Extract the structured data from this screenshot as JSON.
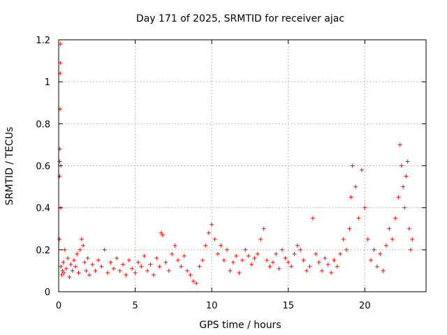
{
  "chart_data": {
    "type": "scatter",
    "title": "Day 171 of 2025, SRMTID for receiver ajac",
    "xlabel": "GPS time / hours",
    "ylabel": "SRMTID / TECUs",
    "xlim": [
      0,
      24
    ],
    "ylim": [
      0,
      1.2
    ],
    "xticks": [
      0,
      5,
      10,
      15,
      20
    ],
    "xtick_labels": [
      "0",
      "5",
      "10",
      "15",
      "20"
    ],
    "yticks": [
      0,
      0.2,
      0.4,
      0.6,
      0.8,
      1.0,
      1.2
    ],
    "ytick_labels": [
      "0",
      "0.2",
      "0.4",
      "0.6",
      "0.8",
      "1",
      "1.2"
    ],
    "grid": true,
    "marker": "+",
    "color": "#ff0000",
    "series": [
      {
        "name": "SRMTID",
        "points": [
          [
            0.05,
            0.25
          ],
          [
            0.06,
            0.55
          ],
          [
            0.07,
            0.62
          ],
          [
            0.08,
            0.68
          ],
          [
            0.09,
            0.87
          ],
          [
            0.1,
            1.04
          ],
          [
            0.11,
            1.09
          ],
          [
            0.12,
            1.18
          ],
          [
            0.13,
            0.4
          ],
          [
            0.14,
            0.6
          ],
          [
            0.15,
            0.12
          ],
          [
            0.2,
            0.08
          ],
          [
            0.25,
            0.1
          ],
          [
            0.3,
            0.14
          ],
          [
            0.35,
            0.09
          ],
          [
            0.4,
            0.2
          ],
          [
            0.5,
            0.11
          ],
          [
            0.6,
            0.16
          ],
          [
            0.7,
            0.07
          ],
          [
            0.8,
            0.13
          ],
          [
            0.9,
            0.1
          ],
          [
            1.0,
            0.15
          ],
          [
            1.1,
            0.12
          ],
          [
            1.2,
            0.18
          ],
          [
            1.3,
            0.09
          ],
          [
            1.4,
            0.2
          ],
          [
            1.5,
            0.25
          ],
          [
            1.6,
            0.22
          ],
          [
            1.7,
            0.14
          ],
          [
            1.8,
            0.1
          ],
          [
            1.9,
            0.16
          ],
          [
            2.0,
            0.08
          ],
          [
            2.2,
            0.13
          ],
          [
            2.4,
            0.1
          ],
          [
            2.6,
            0.15
          ],
          [
            2.8,
            0.12
          ],
          [
            3.0,
            0.2
          ],
          [
            3.2,
            0.09
          ],
          [
            3.4,
            0.14
          ],
          [
            3.6,
            0.11
          ],
          [
            3.8,
            0.16
          ],
          [
            4.0,
            0.1
          ],
          [
            4.2,
            0.13
          ],
          [
            4.4,
            0.08
          ],
          [
            4.6,
            0.15
          ],
          [
            4.8,
            0.11
          ],
          [
            5.0,
            0.09
          ],
          [
            5.2,
            0.14
          ],
          [
            5.4,
            0.12
          ],
          [
            5.6,
            0.17
          ],
          [
            5.8,
            0.1
          ],
          [
            6.0,
            0.13
          ],
          [
            6.2,
            0.08
          ],
          [
            6.4,
            0.16
          ],
          [
            6.6,
            0.12
          ],
          [
            6.7,
            0.28
          ],
          [
            6.8,
            0.27
          ],
          [
            7.0,
            0.14
          ],
          [
            7.2,
            0.1
          ],
          [
            7.4,
            0.18
          ],
          [
            7.6,
            0.22
          ],
          [
            7.8,
            0.15
          ],
          [
            8.0,
            0.12
          ],
          [
            8.2,
            0.17
          ],
          [
            8.4,
            0.1
          ],
          [
            8.6,
            0.08
          ],
          [
            8.8,
            0.05
          ],
          [
            9.0,
            0.04
          ],
          [
            9.2,
            0.12
          ],
          [
            9.4,
            0.15
          ],
          [
            9.6,
            0.22
          ],
          [
            9.8,
            0.28
          ],
          [
            10.0,
            0.32
          ],
          [
            10.2,
            0.25
          ],
          [
            10.4,
            0.18
          ],
          [
            10.6,
            0.22
          ],
          [
            10.8,
            0.15
          ],
          [
            11.0,
            0.2
          ],
          [
            11.2,
            0.1
          ],
          [
            11.4,
            0.14
          ],
          [
            11.6,
            0.17
          ],
          [
            11.8,
            0.09
          ],
          [
            12.0,
            0.15
          ],
          [
            12.2,
            0.2
          ],
          [
            12.4,
            0.17
          ],
          [
            12.6,
            0.13
          ],
          [
            12.8,
            0.16
          ],
          [
            13.0,
            0.18
          ],
          [
            13.2,
            0.25
          ],
          [
            13.4,
            0.3
          ],
          [
            13.6,
            0.15
          ],
          [
            13.8,
            0.12
          ],
          [
            14.0,
            0.14
          ],
          [
            14.2,
            0.18
          ],
          [
            14.4,
            0.11
          ],
          [
            14.6,
            0.2
          ],
          [
            14.8,
            0.16
          ],
          [
            15.0,
            0.14
          ],
          [
            15.2,
            0.12
          ],
          [
            15.4,
            0.18
          ],
          [
            15.6,
            0.22
          ],
          [
            15.8,
            0.2
          ],
          [
            16.0,
            0.15
          ],
          [
            16.2,
            0.1
          ],
          [
            16.4,
            0.12
          ],
          [
            16.6,
            0.35
          ],
          [
            16.8,
            0.18
          ],
          [
            17.0,
            0.14
          ],
          [
            17.2,
            0.1
          ],
          [
            17.4,
            0.16
          ],
          [
            17.6,
            0.13
          ],
          [
            17.8,
            0.09
          ],
          [
            18.0,
            0.15
          ],
          [
            18.2,
            0.12
          ],
          [
            18.4,
            0.18
          ],
          [
            18.6,
            0.25
          ],
          [
            18.8,
            0.2
          ],
          [
            19.0,
            0.3
          ],
          [
            19.1,
            0.45
          ],
          [
            19.2,
            0.6
          ],
          [
            19.4,
            0.5
          ],
          [
            19.6,
            0.35
          ],
          [
            19.8,
            0.58
          ],
          [
            20.0,
            0.4
          ],
          [
            20.2,
            0.25
          ],
          [
            20.4,
            0.15
          ],
          [
            20.6,
            0.2
          ],
          [
            20.8,
            0.12
          ],
          [
            21.0,
            0.18
          ],
          [
            21.2,
            0.1
          ],
          [
            21.4,
            0.22
          ],
          [
            21.6,
            0.3
          ],
          [
            21.8,
            0.25
          ],
          [
            22.0,
            0.35
          ],
          [
            22.2,
            0.45
          ],
          [
            22.3,
            0.7
          ],
          [
            22.4,
            0.6
          ],
          [
            22.5,
            0.5
          ],
          [
            22.6,
            0.4
          ],
          [
            22.7,
            0.55
          ],
          [
            22.8,
            0.62
          ],
          [
            22.9,
            0.3
          ],
          [
            23.0,
            0.2
          ],
          [
            23.1,
            0.25
          ]
        ]
      }
    ]
  }
}
